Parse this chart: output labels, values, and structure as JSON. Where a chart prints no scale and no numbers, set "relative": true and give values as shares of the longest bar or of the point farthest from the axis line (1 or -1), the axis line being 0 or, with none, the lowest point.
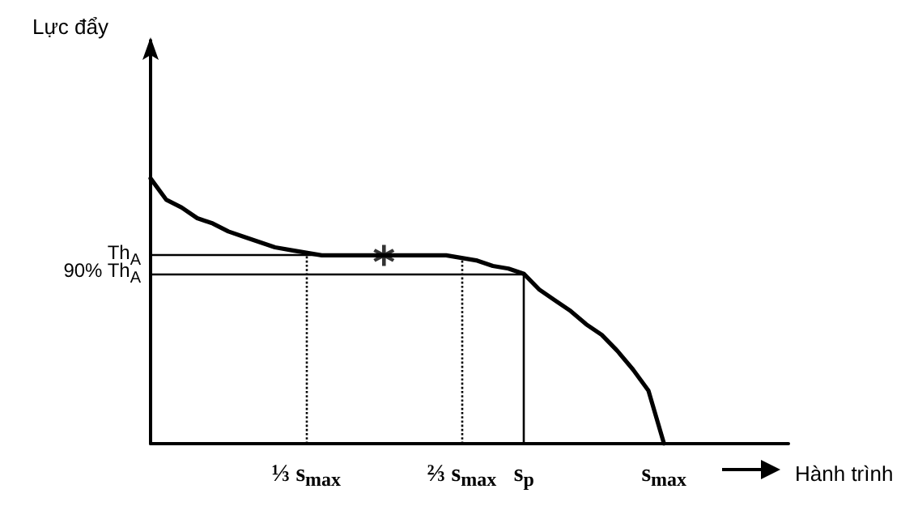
{
  "chart_data": {
    "type": "line",
    "relative": true,
    "xlabel": "Hành trình",
    "annotations": [
      "Lực đẩy"
    ],
    "categories": [
      null,
      null,
      null,
      null,
      null,
      null,
      null,
      null,
      null,
      null,
      "⅓ s$_{max}$",
      null,
      null,
      null,
      null,
      null,
      null,
      null,
      null,
      null,
      "⅔ s$_{max}$",
      null,
      null,
      null,
      "s$_{p}$",
      null,
      null,
      null,
      null,
      null,
      null,
      null,
      null,
      "s$_{max}$",
      null,
      null,
      null,
      null,
      null,
      null,
      null,
      null
    ],
    "series": [
      {
        "color": "#000000",
        "values": [
          1,
          0.92,
          0.89,
          0.85,
          0.83,
          0.8,
          0.78,
          0.76,
          0.74,
          0.73,
          0.72,
          0.71,
          0.71,
          0.71,
          0.71,
          0.71,
          0.71,
          0.71,
          0.71,
          0.71,
          0.7,
          0.69,
          0.67,
          0.66,
          0.64,
          0.58,
          0.54,
          0.5,
          0.45,
          0.41,
          0.35,
          0.28,
          0.2,
          0,
          null,
          null,
          null,
          null,
          null,
          null,
          null,
          null
        ]
      },
      {
        "type": "scatter",
        "marker": "cross",
        "color": "#000000",
        "values": [
          null,
          null,
          null,
          null,
          null,
          null,
          null,
          null,
          null,
          null,
          null,
          null,
          null,
          null,
          null,
          0.71,
          null,
          null,
          null,
          null,
          null,
          null,
          null,
          null,
          null,
          null,
          null,
          null,
          null,
          null,
          null,
          null,
          null,
          null,
          null,
          null,
          null,
          null,
          null,
          null,
          null,
          null
        ]
      }
    ],
    "ref_lines": [
      {
        "axis": "y",
        "value": 0.71,
        "label": "Th$_{A}$",
        "line_style": "solid"
      },
      {
        "axis": "y",
        "value": 0.64,
        "label": "90% Th$_{A}$",
        "line_style": "solid"
      },
      {
        "axis": "x",
        "value": "⅓ s$_{max}$",
        "line_style": "dotted"
      },
      {
        "axis": "x",
        "value": "⅔ s$_{max}$",
        "line_style": "dotted"
      },
      {
        "axis": "x",
        "value": "s$_{p}$",
        "line_style": "solid"
      }
    ],
    "grid": false,
    "marker": "none",
    "line_style": "solid"
  }
}
